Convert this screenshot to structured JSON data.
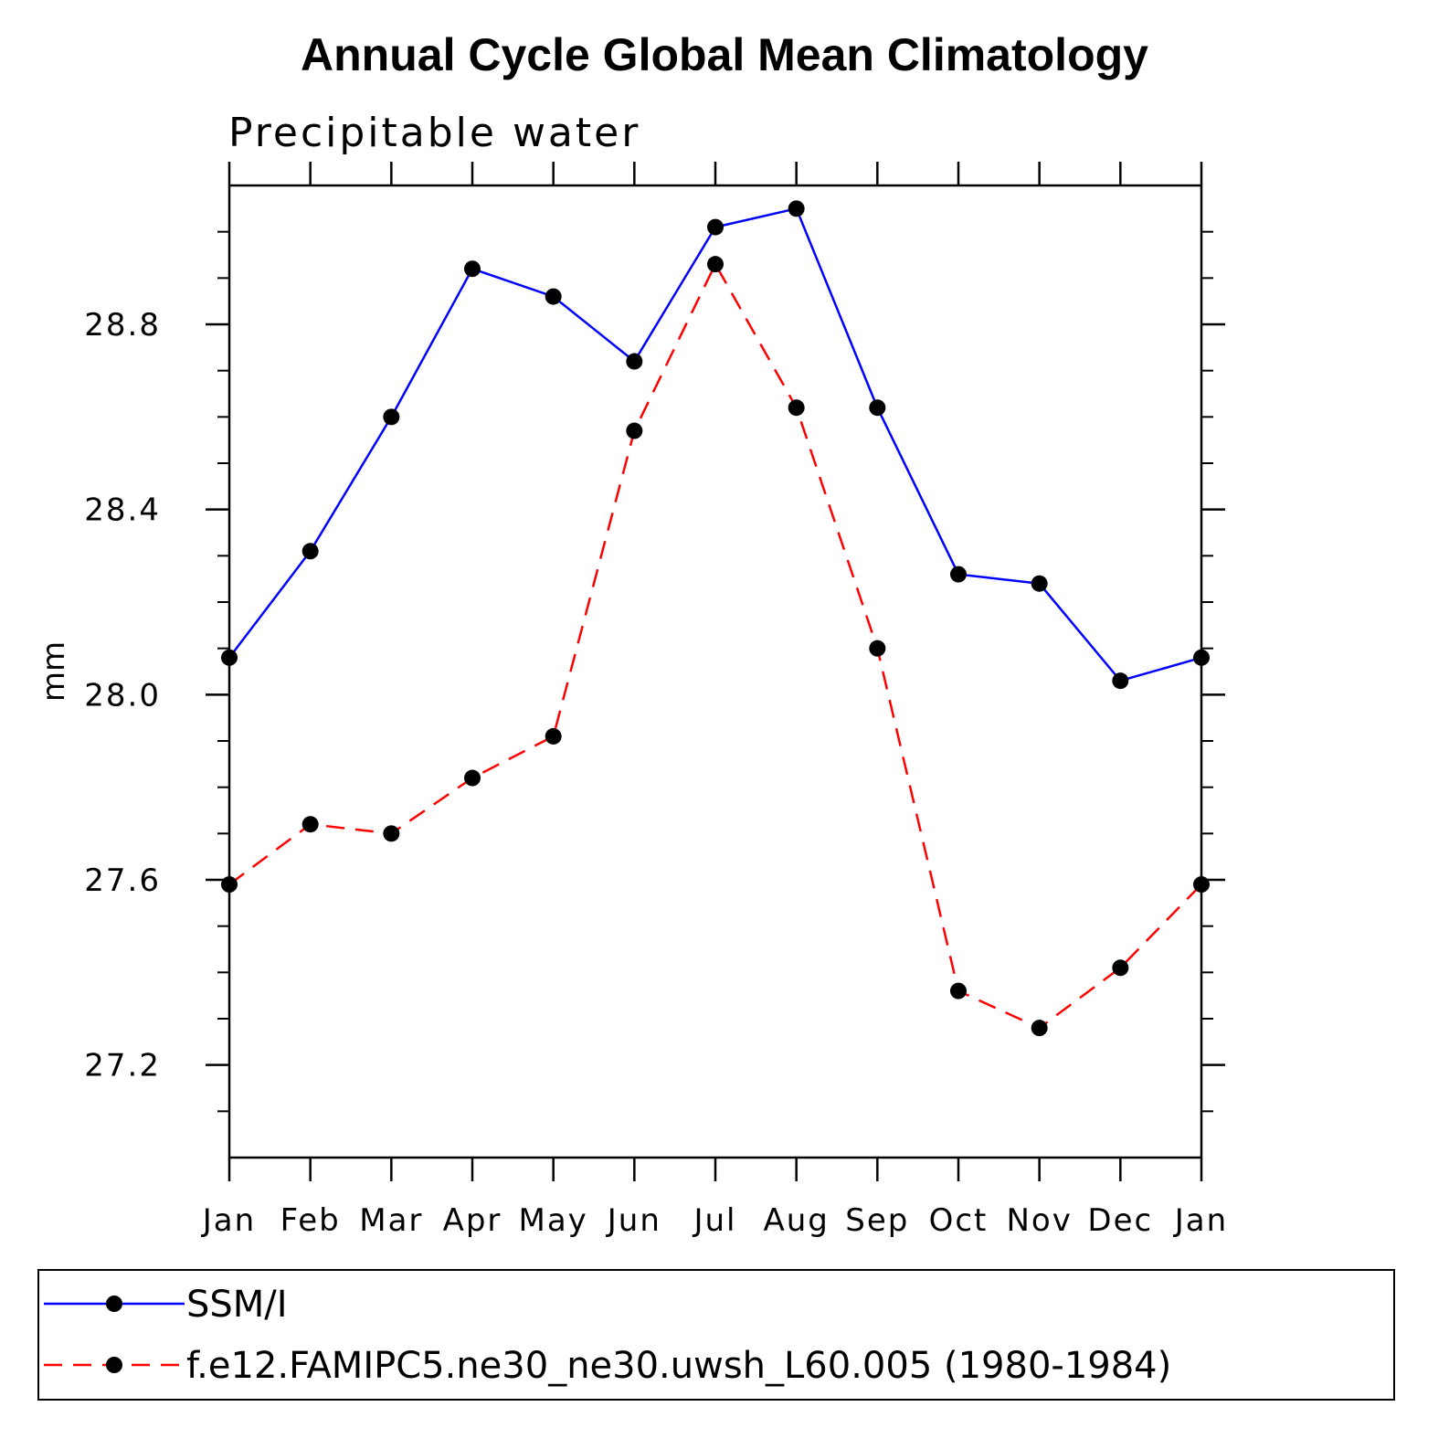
{
  "chart_data": {
    "type": "line",
    "title": "Annual Cycle Global Mean Climatology",
    "subtitle": "Precipitable water",
    "xlabel": "",
    "ylabel": "mm",
    "categories": [
      "Jan",
      "Feb",
      "Mar",
      "Apr",
      "May",
      "Jun",
      "Jul",
      "Aug",
      "Sep",
      "Oct",
      "Nov",
      "Dec",
      "Jan"
    ],
    "ylim": [
      27.0,
      29.1
    ],
    "yticks": [
      27.2,
      27.6,
      28.0,
      28.4,
      28.8
    ],
    "ytick_labels": [
      "27.2",
      "27.6",
      "28.0",
      "28.4",
      "28.8"
    ],
    "yminor_step": 0.1,
    "grid": false,
    "legend_placement": "bottom",
    "series": [
      {
        "name": "SSM/I",
        "color": "#0000ff",
        "dash": "solid",
        "marker": "filled-circle",
        "values": [
          28.08,
          28.31,
          28.6,
          28.92,
          28.86,
          28.72,
          29.01,
          29.05,
          28.62,
          28.26,
          28.24,
          28.03,
          28.08
        ]
      },
      {
        "name": "f.e12.FAMIPC5.ne30_ne30.uwsh_L60.005 (1980-1984)",
        "color": "#ff0000",
        "dash": "dashed",
        "marker": "filled-circle",
        "values": [
          27.59,
          27.72,
          27.7,
          27.82,
          27.91,
          28.57,
          28.93,
          28.62,
          28.1,
          27.36,
          27.28,
          27.41,
          27.59
        ]
      }
    ]
  }
}
